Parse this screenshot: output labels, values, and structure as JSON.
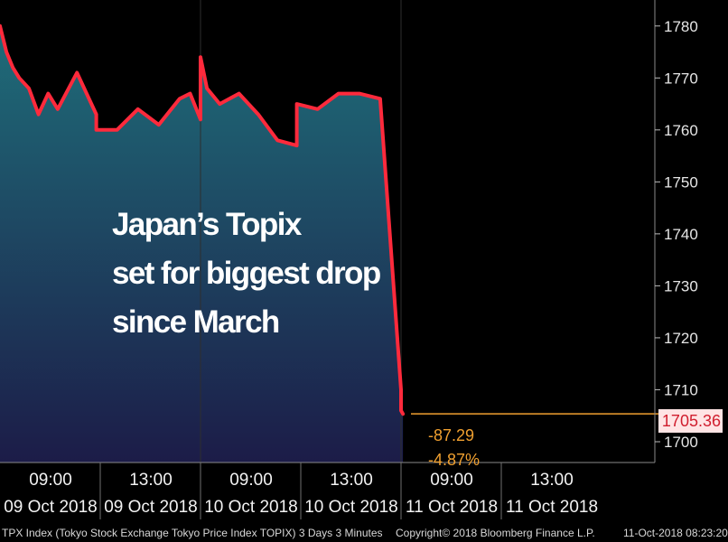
{
  "chart_data": {
    "type": "area",
    "title": "Japan’s Topix set for biggest drop since March",
    "headline_lines": [
      "Japan’s Topix",
      "set for biggest drop",
      "since March"
    ],
    "ylim": [
      1696,
      1785
    ],
    "yticks": [
      1700,
      1710,
      1720,
      1730,
      1740,
      1750,
      1760,
      1770,
      1780
    ],
    "xticks": [
      {
        "time": "09:00",
        "date": "09 Oct 2018"
      },
      {
        "time": "13:00",
        "date": "09 Oct 2018"
      },
      {
        "time": "09:00",
        "date": "10 Oct 2018"
      },
      {
        "time": "13:00",
        "date": "10 Oct 2018"
      },
      {
        "time": "09:00",
        "date": "11 Oct 2018"
      },
      {
        "time": "13:00",
        "date": "11 Oct 2018"
      }
    ],
    "x": [
      "09 Oct 09:00",
      "09 Oct 09:10",
      "09 Oct 09:20",
      "09 Oct 09:30",
      "09 Oct 09:45",
      "09 Oct 10:00",
      "09 Oct 10:15",
      "09 Oct 10:30",
      "09 Oct 11:00",
      "09 Oct 11:30",
      "09 Oct 12:30",
      "09 Oct 13:00",
      "09 Oct 13:30",
      "09 Oct 14:00",
      "09 Oct 14:30",
      "09 Oct 14:45",
      "09 Oct 15:00",
      "10 Oct 09:00",
      "10 Oct 09:10",
      "10 Oct 09:30",
      "10 Oct 10:00",
      "10 Oct 10:30",
      "10 Oct 11:00",
      "10 Oct 11:30",
      "10 Oct 12:30",
      "10 Oct 13:00",
      "10 Oct 13:30",
      "10 Oct 14:00",
      "10 Oct 14:30",
      "10 Oct 15:00",
      "11 Oct 09:00",
      "11 Oct 09:03"
    ],
    "values": [
      1780,
      1775,
      1772,
      1770,
      1768,
      1763,
      1767,
      1764,
      1771,
      1763,
      1760,
      1760,
      1764,
      1761,
      1766,
      1767,
      1762,
      1774,
      1768,
      1765,
      1767,
      1763,
      1758,
      1757,
      1765,
      1764,
      1767,
      1767,
      1766,
      1710,
      1706,
      1705.36
    ],
    "last_value": "1705.36",
    "change": "-87.29",
    "change_pct": "-4.87%",
    "line_color": "#ff2a3c",
    "fill_top_color": "#1f6d79",
    "fill_bottom_color": "#1c1c48",
    "label_color": "#f0a030",
    "grid": false
  },
  "footer": {
    "left": "TPX Index (Tokyo Stock Exchange Tokyo Price Index TOPIX) 3 Days 3 Minutes",
    "center": "Copyright© 2018 Bloomberg Finance L.P.",
    "right": "11-Oct-2018 08:23:20"
  }
}
